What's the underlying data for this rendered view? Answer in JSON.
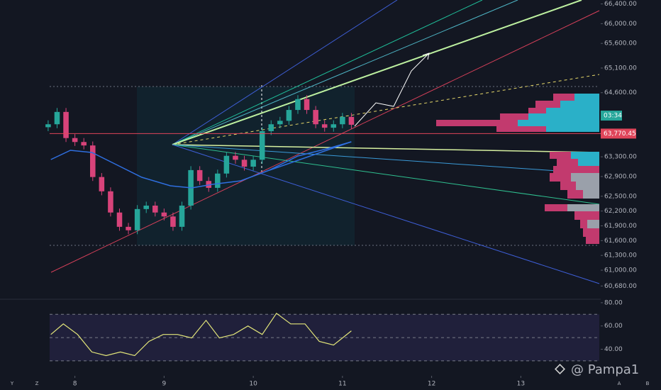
{
  "chart_data": {
    "type": "candlestick",
    "x": [
      7.7,
      7.8,
      7.9,
      8.0,
      8.1,
      8.2,
      8.3,
      8.4,
      8.5,
      8.6,
      8.7,
      8.8,
      8.9,
      9.0,
      9.1,
      9.2,
      9.3,
      9.4,
      9.5,
      9.6,
      9.7,
      9.8,
      9.9,
      10.0,
      10.1,
      10.2,
      10.3,
      10.4,
      10.5,
      10.6,
      10.7,
      10.8,
      10.9,
      11.0,
      11.1
    ],
    "open": [
      63900,
      63960,
      64210,
      63680,
      63600,
      63530,
      62890,
      62600,
      62170,
      61880,
      61810,
      62240,
      62310,
      62170,
      62090,
      61880,
      62310,
      63030,
      62810,
      62670,
      62960,
      63320,
      63240,
      63100,
      63240,
      63820,
      63960,
      64030,
      64250,
      64470,
      64250,
      63960,
      63890,
      63960,
      64110
    ],
    "high": [
      64040,
      64290,
      64290,
      63760,
      63680,
      63610,
      62970,
      62680,
      62250,
      61960,
      62320,
      62390,
      62390,
      62250,
      62170,
      62390,
      63110,
      63110,
      62890,
      63040,
      63400,
      63400,
      63320,
      63320,
      63900,
      64040,
      64110,
      64330,
      64550,
      64550,
      64330,
      64040,
      64040,
      64190,
      64190
    ],
    "low": [
      63820,
      63880,
      63600,
      63520,
      63450,
      62810,
      62520,
      62090,
      61800,
      61730,
      61730,
      62160,
      62090,
      62010,
      61800,
      61800,
      62230,
      62730,
      62590,
      62590,
      62880,
      63160,
      63020,
      63020,
      63160,
      63740,
      63880,
      63950,
      64170,
      64170,
      63880,
      63810,
      63810,
      63880,
      63870
    ],
    "close": [
      63960,
      64210,
      63680,
      63600,
      63530,
      62890,
      62600,
      62170,
      61880,
      61810,
      62240,
      62310,
      62170,
      62090,
      61880,
      62310,
      63030,
      62810,
      62670,
      62960,
      63320,
      63240,
      63100,
      63240,
      63820,
      63960,
      64030,
      64250,
      64470,
      64250,
      63960,
      63890,
      63960,
      64110,
      63950
    ],
    "up_color": "#26a69a",
    "down_color": "#d8437a",
    "xlim": [
      7.16,
      13.88
    ],
    "xticks": [
      8,
      9,
      10,
      11,
      12,
      13
    ],
    "ylim": [
      60440,
      66480
    ],
    "yticks": [
      {
        "value": 66400,
        "label": "66,400.00"
      },
      {
        "value": 66000,
        "label": "66,000.00"
      },
      {
        "value": 65600,
        "label": "65,600.00"
      },
      {
        "value": 65100,
        "label": "65,100.00"
      },
      {
        "value": 64600,
        "label": "64,600.00"
      },
      {
        "value": 63300,
        "label": "63,300.00"
      },
      {
        "value": 62900,
        "label": "62,900.00"
      },
      {
        "value": 62500,
        "label": "62,500.00"
      },
      {
        "value": 62200,
        "label": "62,200.00"
      },
      {
        "value": 61900,
        "label": "61,900.00"
      },
      {
        "value": 61600,
        "label": "61,600.00"
      },
      {
        "value": 61300,
        "label": "61,300.00"
      },
      {
        "value": 61000,
        "label": "61,000.00"
      },
      {
        "value": 60680,
        "label": "60,680.00"
      }
    ],
    "moving_average": {
      "color": "#2f6fe0",
      "x": [
        7.73,
        7.95,
        8.19,
        8.43,
        8.75,
        9.07,
        9.31,
        9.54,
        9.86,
        10.18,
        10.5,
        10.82,
        11.1
      ],
      "values": [
        63245,
        63431,
        63388,
        63173,
        62885,
        62712,
        62669,
        62741,
        62813,
        63029,
        63316,
        63460,
        63604
      ]
    },
    "current_price": {
      "value": 63770.45,
      "label": "63,770.45",
      "color": "#e0455a"
    },
    "countdown": "03:34",
    "rsi": {
      "color": "#e3e67a",
      "x": [
        7.73,
        7.87,
        8.03,
        8.19,
        8.35,
        8.51,
        8.67,
        8.83,
        8.99,
        9.15,
        9.31,
        9.47,
        9.62,
        9.78,
        9.94,
        10.1,
        10.26,
        10.42,
        10.58,
        10.74,
        10.9,
        11.1
      ],
      "values": [
        52.7,
        61.8,
        52.7,
        37.6,
        34.5,
        37.6,
        34.5,
        46.7,
        52.7,
        52.7,
        49.7,
        64.8,
        49.7,
        52.7,
        60,
        52.7,
        70.9,
        61.8,
        61.8,
        46.7,
        43.6,
        55.8
      ],
      "ylim": [
        22,
        83
      ],
      "yticks": [
        {
          "value": 80,
          "label": "80.00"
        },
        {
          "value": 60,
          "label": "60.00"
        },
        {
          "value": 40,
          "label": "40.00"
        }
      ],
      "bands": [
        30,
        50,
        70
      ]
    }
  },
  "watermark": "@ Pampa1",
  "corner_labels": [
    "Y",
    "Z",
    "A",
    "B"
  ]
}
